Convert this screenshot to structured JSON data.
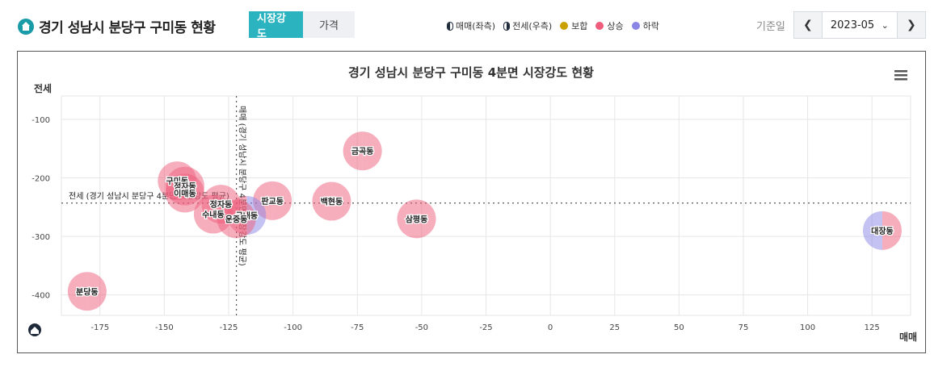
{
  "header": {
    "title": "경기 성남시 분당구 구미동 현황",
    "tabs": [
      {
        "label": "시장강도",
        "active": true
      },
      {
        "label": "가격",
        "active": false
      }
    ],
    "legend": [
      {
        "label": "매매(좌측)",
        "icon": "half-left-circle-icon"
      },
      {
        "label": "전세(우측)",
        "icon": "half-right-circle-icon"
      },
      {
        "label": "보합",
        "color": "#c9a000"
      },
      {
        "label": "상승",
        "color": "#ee5d7c"
      },
      {
        "label": "하락",
        "color": "#8a86e6"
      }
    ],
    "date_label": "기준일",
    "date_value": "2023-05",
    "prev_icon": "chevron-left-icon",
    "next_icon": "chevron-right-icon"
  },
  "chart_data": {
    "type": "scatter",
    "title": "경기 성남시 분당구 구미동 4분면 시장강도 현황",
    "xlabel": "매매",
    "ylabel": "전세",
    "xlim": [
      -190,
      140
    ],
    "ylim": [
      -435,
      -60
    ],
    "xticks": [
      -175,
      -150,
      -125,
      -100,
      -75,
      -50,
      -25,
      0,
      25,
      50,
      75,
      100,
      125
    ],
    "yticks": [
      -100,
      -200,
      -300,
      -400
    ],
    "grid": true,
    "menu_icon": "hamburger-menu-icon",
    "avg_lines": {
      "x": -122,
      "y": -243,
      "x_label": "매매 (경기 성남시 분당구 4분면 시장강도 평균)",
      "y_label": "전세 (경기 성남시 분당구 4분면 시장강도 평균)"
    },
    "points": [
      {
        "name": "금곡동",
        "x": -73,
        "y": -154,
        "left": "상승",
        "right": "상승"
      },
      {
        "name": "구미동",
        "x": -145,
        "y": -205,
        "left": "상승",
        "right": "상승"
      },
      {
        "name": "정자동",
        "x": -142,
        "y": -214,
        "left": "상승",
        "right": "상승"
      },
      {
        "name": "이매동",
        "x": -142,
        "y": -226,
        "left": "상승",
        "right": "상승"
      },
      {
        "name": "판교동",
        "x": -108,
        "y": -239,
        "left": "상승",
        "right": "상승"
      },
      {
        "name": "백현동",
        "x": -85,
        "y": -240,
        "left": "상승",
        "right": "상승"
      },
      {
        "name": "정자동",
        "x": -128,
        "y": -245,
        "left": "상승",
        "right": "상승"
      },
      {
        "name": "수내동",
        "x": -131,
        "y": -262,
        "left": "상승",
        "right": "상승"
      },
      {
        "name": "삼평동",
        "x": -52,
        "y": -270,
        "left": "상승",
        "right": "상승"
      },
      {
        "name": "궁내동",
        "x": -118,
        "y": -264,
        "left": "상승",
        "right": "하락"
      },
      {
        "name": "운중동",
        "x": -122,
        "y": -270,
        "left": "상승",
        "right": "상승"
      },
      {
        "name": "대장동",
        "x": 129,
        "y": -290,
        "left": "하락",
        "right": "상승"
      },
      {
        "name": "분당동",
        "x": -180,
        "y": -394,
        "left": "상승",
        "right": "상승"
      }
    ]
  }
}
